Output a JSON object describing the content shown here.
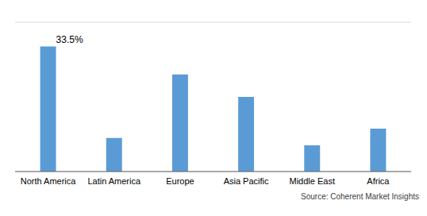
{
  "chart_data": {
    "type": "bar",
    "categories": [
      "North America",
      "Latin America",
      "Europe",
      "Asia Pacific",
      "Middle East",
      "Africa"
    ],
    "values": [
      33.5,
      9.0,
      26.0,
      20.0,
      7.0,
      11.5
    ],
    "color": "#5b9bd5",
    "ylim": [
      0,
      40
    ],
    "yticks": [
      0,
      10,
      20,
      30,
      40
    ],
    "grid": true,
    "tick_labels": "x",
    "annotations": [
      {
        "text": "33.5%",
        "category": "North America",
        "value": 33.5
      },
      {
        "text": "Source: Coherent Market Insights"
      }
    ]
  }
}
